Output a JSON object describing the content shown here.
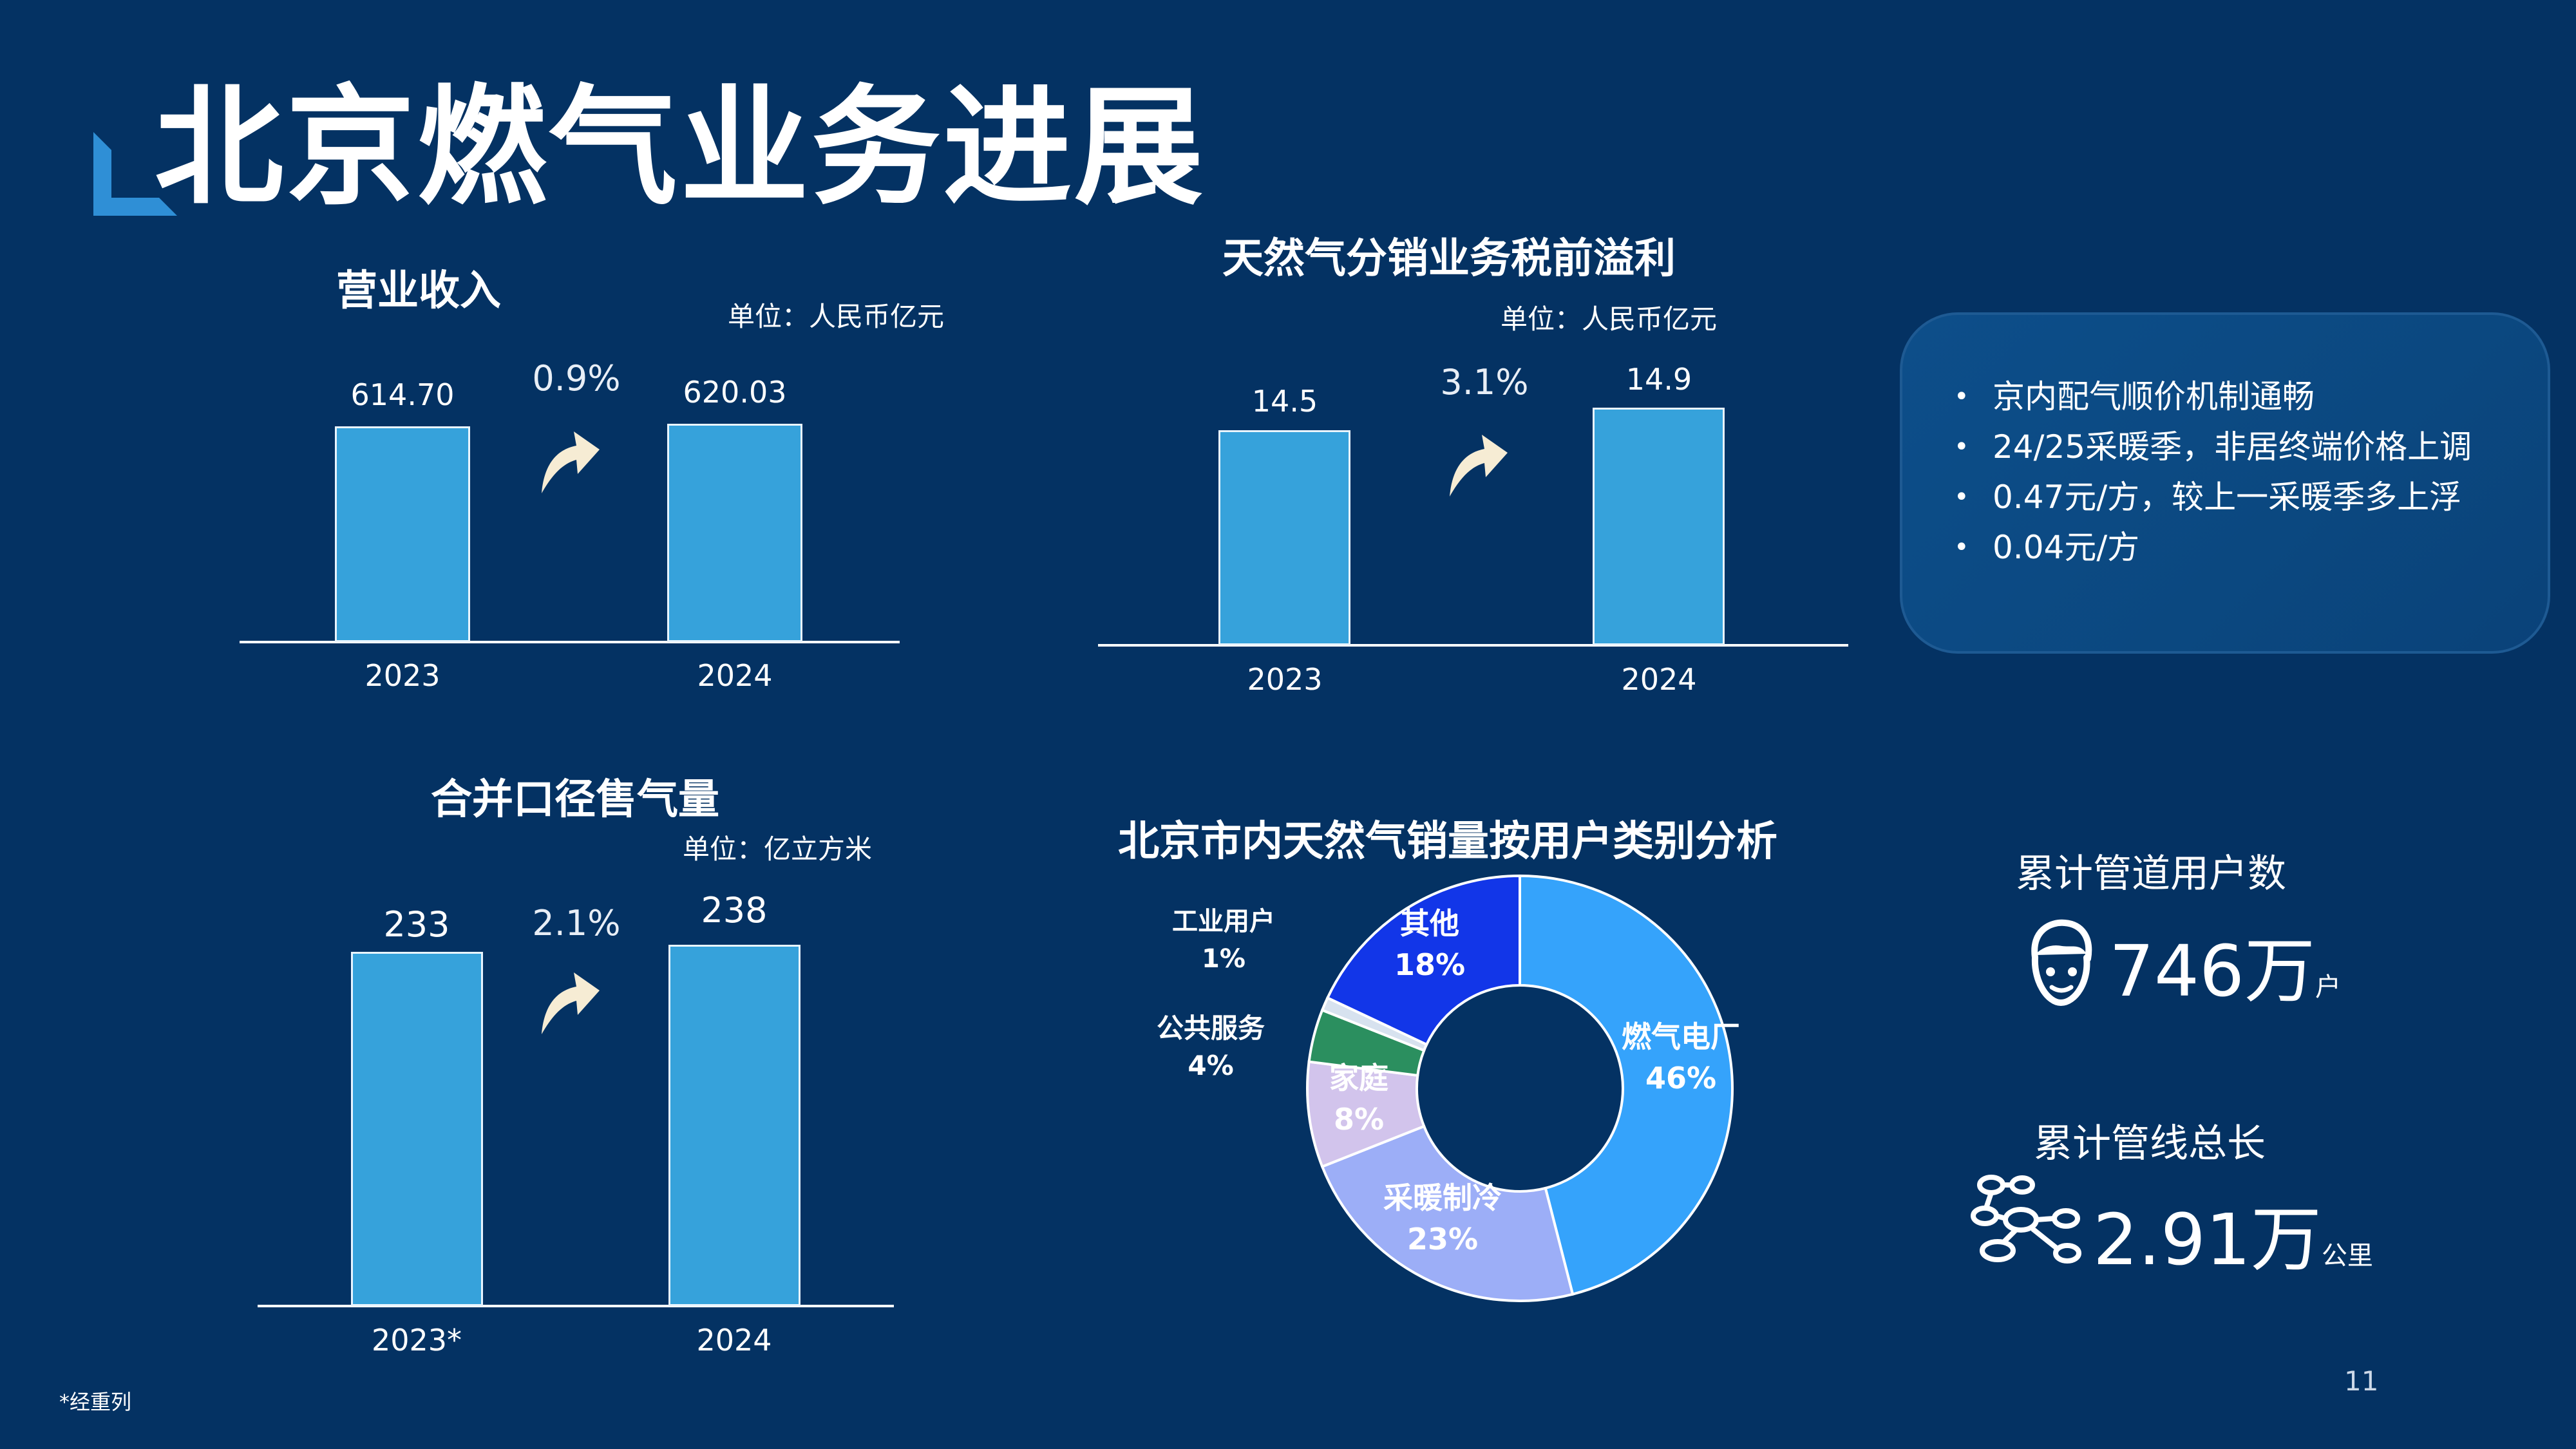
{
  "page": {
    "title": "北京燃气业务进展",
    "page_number": "11",
    "footnote": "*经重列"
  },
  "colors": {
    "background": "#043263",
    "bar": "#36a2db",
    "arrow": "#f6ecd4"
  },
  "chart_data": [
    {
      "type": "bar",
      "title": "营业收入",
      "unit": "单位：人民币亿元",
      "categories": [
        "2023",
        "2024"
      ],
      "values": [
        614.7,
        620.03
      ],
      "value_labels": [
        "614.70",
        "620.03"
      ],
      "growth": "0.9%"
    },
    {
      "type": "bar",
      "title": "天然气分销业务税前溢利",
      "unit": "单位：人民币亿元",
      "categories": [
        "2023",
        "2024"
      ],
      "values": [
        14.5,
        14.9
      ],
      "value_labels": [
        "14.5",
        "14.9"
      ],
      "growth": "3.1%"
    },
    {
      "type": "bar",
      "title": "合并口径售气量",
      "unit": "单位：亿立方米",
      "categories": [
        "2023*",
        "2024"
      ],
      "values": [
        233,
        238
      ],
      "value_labels": [
        "233",
        "238"
      ],
      "growth": "2.1%"
    },
    {
      "type": "pie",
      "title": "北京市内天然气销量按用户类别分析",
      "slices": [
        {
          "label": "燃气电厂",
          "value": 46,
          "value_label": "46%",
          "color": "#35a3fb"
        },
        {
          "label": "采暖制冷",
          "value": 23,
          "value_label": "23%",
          "color": "#9caef7"
        },
        {
          "label": "家庭",
          "value": 8,
          "value_label": "8%",
          "color": "#d2c4ec"
        },
        {
          "label": "公共服务",
          "value": 4,
          "value_label": "4%",
          "color": "#2b8f5f"
        },
        {
          "label": "工业用户",
          "value": 1,
          "value_label": "1%",
          "color": "#d7e2ef"
        },
        {
          "label": "其他",
          "value": 18,
          "value_label": "18%",
          "color": "#1236e8"
        }
      ]
    }
  ],
  "info_panel": {
    "bullets": [
      "京内配气顺价机制通畅",
      "24/25采暖季，非居终端价格上调",
      "0.47元/方，较上一采暖季多上浮",
      "0.04元/方"
    ]
  },
  "stats": {
    "users": {
      "label": "累计管道用户数",
      "value": "746万",
      "unit": "户",
      "icon": "user-icon"
    },
    "pipeline": {
      "label": "累计管线总长",
      "value": "2.91万",
      "unit": "公里",
      "icon": "pipeline-network-icon"
    }
  }
}
